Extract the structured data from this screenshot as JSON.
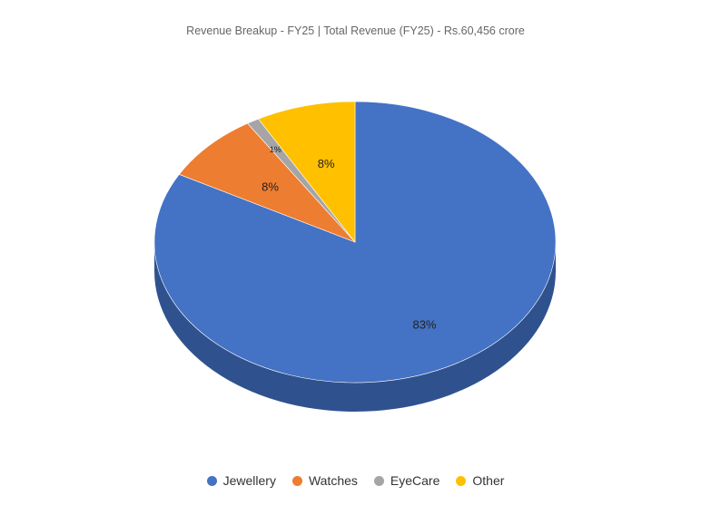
{
  "chart_data": {
    "type": "pie",
    "title": "Revenue Breakup - FY25 | Total Revenue (FY25) - Rs.60,456 crore",
    "categories": [
      "Jewellery",
      "Watches",
      "EyeCare",
      "Other"
    ],
    "values": [
      83,
      8,
      1,
      8
    ],
    "labels": [
      "83%",
      "8%",
      "1%",
      "8%"
    ],
    "colors": [
      "#4472C4",
      "#ED7D31",
      "#A5A5A5",
      "#FFC000"
    ],
    "side_color": "#2F528F",
    "style": "3d",
    "legend": "bottom"
  }
}
